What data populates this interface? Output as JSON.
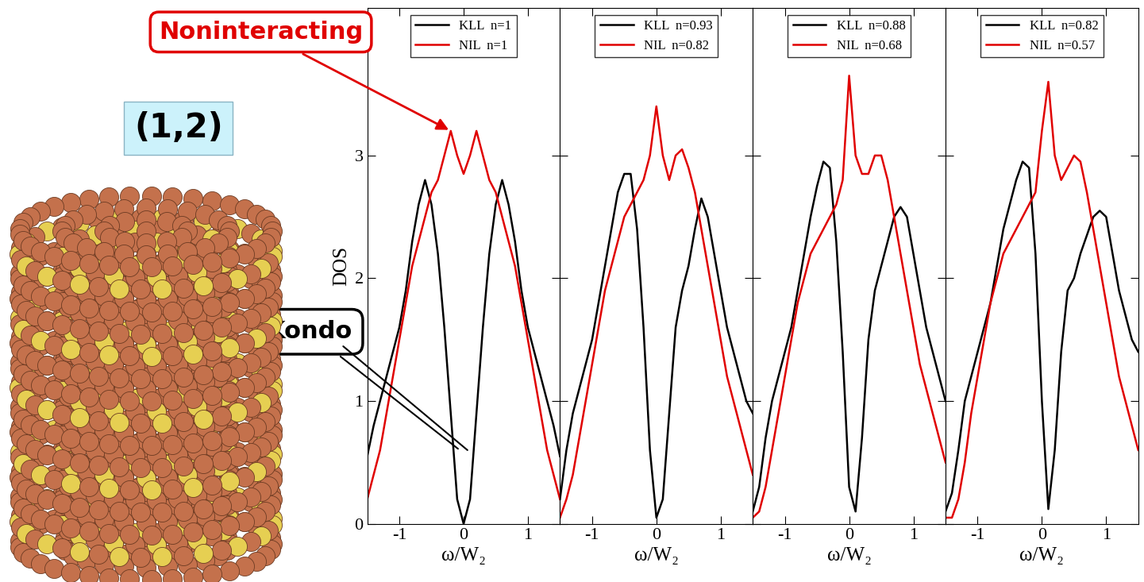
{
  "chart_data": [
    {
      "type": "line",
      "ylabel": "DOS",
      "xlabel": "ω/W₂",
      "x": [
        -1.5,
        -1.4,
        -1.3,
        -1.2,
        -1.1,
        -1.0,
        -0.9,
        -0.8,
        -0.7,
        -0.6,
        -0.5,
        -0.4,
        -0.3,
        -0.2,
        -0.1,
        0.0,
        0.1,
        0.2,
        0.3,
        0.4,
        0.5,
        0.6,
        0.7,
        0.8,
        0.9,
        1.0,
        1.1,
        1.2,
        1.3,
        1.4,
        1.5
      ],
      "series": [
        {
          "name": "KLL  n=1",
          "color": "#000000",
          "values": [
            0.55,
            0.8,
            1.0,
            1.2,
            1.4,
            1.6,
            1.9,
            2.3,
            2.6,
            2.8,
            2.6,
            2.2,
            1.6,
            0.9,
            0.2,
            0.0,
            0.2,
            0.9,
            1.6,
            2.2,
            2.6,
            2.8,
            2.6,
            2.3,
            1.9,
            1.6,
            1.4,
            1.2,
            1.0,
            0.8,
            0.55
          ]
        },
        {
          "name": "NIL  n=1",
          "color": "#e00000",
          "values": [
            0.2,
            0.4,
            0.6,
            0.9,
            1.2,
            1.5,
            1.8,
            2.1,
            2.3,
            2.5,
            2.7,
            2.8,
            3.0,
            3.2,
            3.0,
            2.85,
            3.0,
            3.2,
            3.0,
            2.8,
            2.7,
            2.5,
            2.3,
            2.1,
            1.8,
            1.5,
            1.2,
            0.9,
            0.6,
            0.4,
            0.2
          ]
        }
      ],
      "xlim": [
        -1.5,
        1.5
      ],
      "xticks": [
        -1,
        0,
        1
      ],
      "ylim": [
        0,
        4.2
      ],
      "yticks": [
        0,
        1,
        2,
        3
      ],
      "legend": "upper center",
      "grid": false
    },
    {
      "type": "line",
      "xlabel": "ω/W₂",
      "x": [
        -1.5,
        -1.4,
        -1.3,
        -1.2,
        -1.1,
        -1.0,
        -0.9,
        -0.8,
        -0.7,
        -0.6,
        -0.5,
        -0.4,
        -0.3,
        -0.2,
        -0.1,
        0.0,
        0.1,
        0.2,
        0.3,
        0.4,
        0.5,
        0.6,
        0.7,
        0.8,
        0.9,
        1.0,
        1.1,
        1.2,
        1.3,
        1.4,
        1.5
      ],
      "series": [
        {
          "name": "KLL  n=0.93",
          "color": "#000000",
          "values": [
            0.2,
            0.6,
            0.9,
            1.1,
            1.3,
            1.5,
            1.8,
            2.1,
            2.4,
            2.7,
            2.85,
            2.85,
            2.4,
            1.6,
            0.6,
            0.05,
            0.2,
            0.9,
            1.6,
            1.9,
            2.1,
            2.4,
            2.65,
            2.5,
            2.2,
            1.9,
            1.6,
            1.4,
            1.2,
            1.0,
            0.9
          ]
        },
        {
          "name": "NIL  n=0.82",
          "color": "#e00000",
          "values": [
            0.05,
            0.2,
            0.4,
            0.7,
            1.0,
            1.3,
            1.6,
            1.9,
            2.1,
            2.3,
            2.5,
            2.6,
            2.7,
            2.8,
            3.0,
            3.4,
            3.0,
            2.8,
            3.0,
            3.05,
            2.9,
            2.7,
            2.4,
            2.1,
            1.8,
            1.5,
            1.2,
            1.0,
            0.8,
            0.6,
            0.4
          ]
        }
      ],
      "xlim": [
        -1.5,
        1.5
      ],
      "xticks": [
        -1,
        0,
        1
      ],
      "ylim": [
        0,
        4.2
      ],
      "yticks": [
        0,
        1,
        2,
        3
      ],
      "legend": "upper center",
      "grid": false,
      "tick_labels": "x"
    },
    {
      "type": "line",
      "xlabel": "ω/W₂",
      "x": [
        -1.5,
        -1.4,
        -1.3,
        -1.2,
        -1.1,
        -1.0,
        -0.9,
        -0.8,
        -0.7,
        -0.6,
        -0.5,
        -0.4,
        -0.3,
        -0.2,
        -0.1,
        0.0,
        0.1,
        0.2,
        0.3,
        0.4,
        0.5,
        0.6,
        0.7,
        0.8,
        0.9,
        1.0,
        1.1,
        1.2,
        1.3,
        1.4,
        1.5
      ],
      "series": [
        {
          "name": "KLL  n=0.88",
          "color": "#000000",
          "values": [
            0.1,
            0.3,
            0.7,
            1.0,
            1.2,
            1.4,
            1.6,
            1.9,
            2.2,
            2.5,
            2.75,
            2.95,
            2.9,
            2.3,
            1.4,
            0.3,
            0.1,
            0.7,
            1.5,
            1.9,
            2.1,
            2.3,
            2.5,
            2.58,
            2.5,
            2.2,
            1.9,
            1.6,
            1.4,
            1.2,
            1.0
          ]
        },
        {
          "name": "NIL  n=0.68",
          "color": "#e00000",
          "values": [
            0.05,
            0.1,
            0.3,
            0.6,
            0.9,
            1.2,
            1.5,
            1.8,
            2.0,
            2.2,
            2.3,
            2.4,
            2.5,
            2.6,
            2.8,
            3.65,
            3.0,
            2.85,
            2.85,
            3.0,
            3.0,
            2.8,
            2.5,
            2.2,
            1.9,
            1.6,
            1.3,
            1.1,
            0.9,
            0.7,
            0.5
          ]
        }
      ],
      "xlim": [
        -1.5,
        1.5
      ],
      "xticks": [
        -1,
        0,
        1
      ],
      "ylim": [
        0,
        4.2
      ],
      "yticks": [
        0,
        1,
        2,
        3
      ],
      "legend": "upper center",
      "grid": false,
      "tick_labels": "x"
    },
    {
      "type": "line",
      "xlabel": "ω/W₂",
      "x": [
        -1.5,
        -1.4,
        -1.3,
        -1.2,
        -1.1,
        -1.0,
        -0.9,
        -0.8,
        -0.7,
        -0.6,
        -0.5,
        -0.4,
        -0.3,
        -0.2,
        -0.1,
        0.0,
        0.1,
        0.2,
        0.3,
        0.4,
        0.5,
        0.6,
        0.7,
        0.8,
        0.9,
        1.0,
        1.1,
        1.2,
        1.3,
        1.4,
        1.5
      ],
      "series": [
        {
          "name": "KLL  n=0.82",
          "color": "#000000",
          "values": [
            0.1,
            0.25,
            0.6,
            1.0,
            1.2,
            1.4,
            1.6,
            1.8,
            2.1,
            2.4,
            2.6,
            2.8,
            2.95,
            2.9,
            2.2,
            1.0,
            0.12,
            0.6,
            1.4,
            1.9,
            2.0,
            2.2,
            2.35,
            2.5,
            2.55,
            2.5,
            2.2,
            1.9,
            1.7,
            1.5,
            1.4
          ]
        },
        {
          "name": "NIL  n=0.57",
          "color": "#e00000",
          "values": [
            0.05,
            0.05,
            0.2,
            0.5,
            0.9,
            1.2,
            1.5,
            1.8,
            2.0,
            2.2,
            2.3,
            2.4,
            2.5,
            2.6,
            2.7,
            3.2,
            3.6,
            3.0,
            2.8,
            2.9,
            3.0,
            2.95,
            2.7,
            2.4,
            2.1,
            1.8,
            1.5,
            1.2,
            1.0,
            0.8,
            0.6
          ]
        }
      ],
      "xlim": [
        -1.5,
        1.5
      ],
      "xticks": [
        -1,
        0,
        1
      ],
      "ylim": [
        0,
        4.2
      ],
      "yticks": [
        0,
        1,
        2,
        3
      ],
      "legend": "upper center",
      "grid": false,
      "tick_labels": "x"
    }
  ],
  "annotations": [
    "(1,2)",
    "Noninteracting",
    "Kondo"
  ]
}
